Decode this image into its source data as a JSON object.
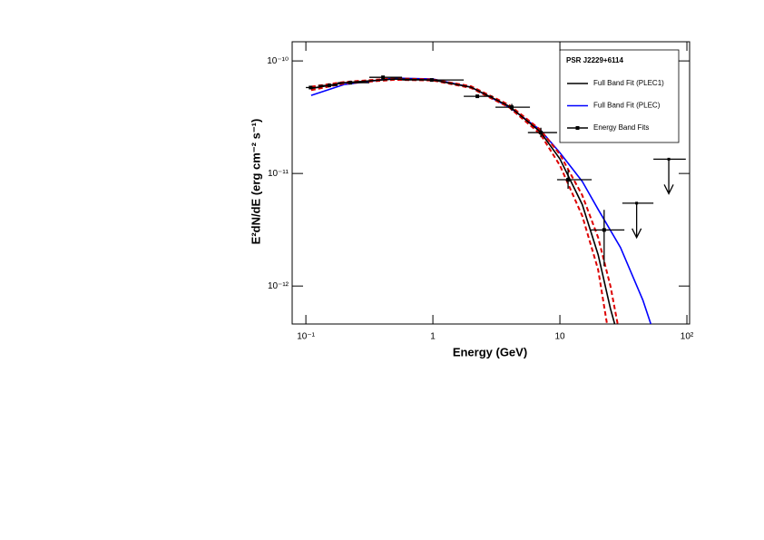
{
  "chart_data": {
    "type": "line",
    "x_label": "Energy (GeV)",
    "y_label": "E²dN/dE (erg cm⁻² s⁻¹)",
    "xlog": true,
    "ylog": true,
    "xlim": [
      0.078,
      105
    ],
    "ylim": [
      4.6e-13,
      1.48e-10
    ],
    "xticks": [
      {
        "value": 0.1,
        "label": "10⁻¹"
      },
      1,
      10,
      {
        "value": 100,
        "label": "10²"
      }
    ],
    "yticks": [
      {
        "value": 1e-12,
        "label": "10⁻¹²"
      },
      {
        "value": 1e-11,
        "label": "10⁻¹¹"
      },
      {
        "value": 1e-10,
        "label": "10⁻¹⁰"
      }
    ],
    "legend_title": "PSR J2229+6114",
    "legend_position": "top-right",
    "series": [
      {
        "name": "Full Band Fit (PLEC)",
        "color": "#0000ff",
        "style": "solid",
        "x": [
          0.11,
          0.2,
          0.5,
          1,
          2,
          4,
          7,
          10,
          15,
          20,
          30,
          45,
          52
        ],
        "values": [
          4.94e-11,
          6.17e-11,
          7.03e-11,
          6.9e-11,
          5.84e-11,
          3.88e-11,
          2.44e-11,
          1.53e-11,
          8.5e-12,
          4.8e-12,
          2.2e-12,
          7.5e-13,
          4.6e-13
        ]
      },
      {
        "color": "#dd0000",
        "style": "dashed",
        "x": [
          0.11,
          0.2,
          0.5,
          1,
          2,
          4,
          7,
          10,
          15,
          20,
          25,
          28.5
        ],
        "values": [
          5.9e-11,
          6.5e-11,
          7e-11,
          6.85e-11,
          5.95e-11,
          4.05e-11,
          2.45e-11,
          1.48e-11,
          6.4e-12,
          2.7e-12,
          1e-12,
          4.6e-13
        ]
      },
      {
        "color": "#dd0000",
        "style": "dashed",
        "x": [
          0.11,
          0.2,
          0.5,
          1,
          2,
          4,
          7,
          10,
          15,
          20,
          23.5
        ],
        "values": [
          5.5e-11,
          6.3e-11,
          6.8e-11,
          6.7e-11,
          5.75e-11,
          3.85e-11,
          2.25e-11,
          1.18e-11,
          4.2e-12,
          1.4e-12,
          4.6e-13
        ]
      },
      {
        "name": "Full Band Fit (PLEC1)",
        "color": "#000000",
        "style": "solid",
        "x": [
          0.11,
          0.2,
          0.5,
          1,
          2,
          4,
          7,
          10,
          15,
          20,
          25,
          27
        ],
        "values": [
          5.7e-11,
          6.4e-11,
          6.9e-11,
          6.77e-11,
          5.84e-11,
          3.95e-11,
          2.35e-11,
          1.35e-11,
          5.3e-12,
          1.9e-12,
          6.3e-13,
          4.6e-13
        ]
      },
      {
        "name": "Energy Band Fits",
        "color": "#000000",
        "style": "points",
        "x": [
          0.109,
          0.153,
          0.224,
          0.405,
          0.98,
          2.24,
          4.18,
          7.08,
          11.6,
          22.3
        ],
        "x_low": [
          0.1,
          0.125,
          0.178,
          0.316,
          0.572,
          1.75,
          3.11,
          5.6,
          9.5,
          17.5
        ],
        "x_high": [
          0.125,
          0.178,
          0.316,
          0.572,
          1.75,
          2.96,
          5.81,
          9.5,
          17.8,
          32.2
        ],
        "values": [
          5.8e-11,
          6.06e-11,
          6.4e-11,
          7.15e-11,
          6.77e-11,
          4.85e-11,
          3.88e-11,
          2.31e-11,
          8.8e-12,
          3.15e-12
        ],
        "y_low": [
          5.6e-11,
          5.9e-11,
          6.25e-11,
          6.95e-11,
          6.6e-11,
          4.7e-11,
          3.6e-11,
          2.1e-11,
          7.3e-12,
          1.5e-12
        ],
        "y_high": [
          6e-11,
          6.25e-11,
          6.55e-11,
          7.35e-11,
          6.95e-11,
          5e-11,
          4.15e-11,
          2.55e-11,
          1.08e-11,
          4.75e-12
        ]
      }
    ],
    "upper_limits": {
      "color": "#000000",
      "x": [
        40.2,
        72.0
      ],
      "x_low": [
        31,
        54.5
      ],
      "x_high": [
        54.5,
        98
      ],
      "values": [
        5.45e-12,
        1.34e-11
      ]
    }
  }
}
